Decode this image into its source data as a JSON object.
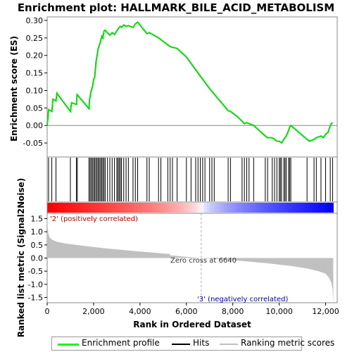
{
  "chart_data": {
    "type": "line",
    "title": "Enrichment plot: HALLMARK_BILE_ACID_METABOLISM",
    "panels": {
      "es": {
        "ylabel": "Enrichment score (ES)",
        "ylim": [
          -0.09,
          0.31
        ],
        "yticks": [
          -0.05,
          0.0,
          0.05,
          0.1,
          0.15,
          0.2,
          0.25,
          0.3
        ],
        "ytick_labels": [
          "-0.05",
          "0.00",
          "0.05",
          "0.10",
          "0.15",
          "0.20",
          "0.25",
          "0.30"
        ],
        "series": [
          {
            "name": "Enrichment profile",
            "color": "#00e000",
            "x": [
              0,
              60,
              200,
              250,
              380,
              420,
              1000,
              1050,
              1260,
              1290,
              1800,
              1830,
              1900,
              1950,
              2000,
              2050,
              2100,
              2150,
              2200,
              2250,
              2300,
              2350,
              2400,
              2450,
              2500,
              2550,
              2700,
              2800,
              2900,
              3000,
              3100,
              3150,
              3200,
              3300,
              3400,
              3500,
              3700,
              3800,
              3900,
              4300,
              4400,
              4800,
              4900,
              5200,
              5300,
              5600,
              6000,
              6500,
              7000,
              7800,
              7900,
              8200,
              8500,
              8600,
              8700,
              8900,
              9400,
              9500,
              9700,
              9800,
              9900,
              10000,
              10100,
              10200,
              10250,
              10300,
              10400,
              10450,
              10500,
              11200,
              11300,
              11500,
              11600,
              11800,
              11900,
              12000,
              12100,
              12200,
              12250,
              12300
            ],
            "y": [
              0.0,
              0.045,
              0.04,
              0.075,
              0.07,
              0.092,
              0.04,
              0.065,
              0.06,
              0.088,
              0.048,
              0.075,
              0.1,
              0.11,
              0.13,
              0.14,
              0.18,
              0.2,
              0.22,
              0.23,
              0.24,
              0.255,
              0.25,
              0.27,
              0.272,
              0.268,
              0.258,
              0.265,
              0.26,
              0.27,
              0.28,
              0.283,
              0.28,
              0.287,
              0.283,
              0.285,
              0.28,
              0.29,
              0.295,
              0.262,
              0.265,
              0.25,
              0.245,
              0.23,
              0.225,
              0.22,
              0.195,
              0.15,
              0.105,
              0.042,
              0.04,
              0.025,
              0.005,
              0.008,
              0.005,
              0.0,
              -0.03,
              -0.035,
              -0.035,
              -0.04,
              -0.045,
              -0.045,
              -0.05,
              -0.04,
              -0.035,
              -0.03,
              -0.015,
              -0.005,
              0.0,
              -0.04,
              -0.045,
              -0.04,
              -0.035,
              -0.03,
              -0.035,
              -0.025,
              -0.02,
              0.0,
              0.005,
              0.008
            ]
          }
        ]
      },
      "hits": {
        "name": "Hits",
        "positions": [
          60,
          200,
          380,
          1000,
          1260,
          1300,
          1800,
          1850,
          1900,
          1950,
          2000,
          2050,
          2100,
          2150,
          2200,
          2250,
          2300,
          2350,
          2400,
          2450,
          2500,
          2600,
          2700,
          2800,
          2900,
          3000,
          3050,
          3100,
          3150,
          3200,
          3300,
          3400,
          3500,
          3700,
          3800,
          3900,
          4300,
          4400,
          4800,
          4900,
          5200,
          5300,
          5400,
          5600,
          6000,
          6200,
          6400,
          6500,
          6600,
          6700,
          6800,
          7000,
          7100,
          7200,
          7800,
          7900,
          8400,
          8500,
          8600,
          8700,
          8900,
          9400,
          9500,
          9700,
          9800,
          9900,
          10000,
          10050,
          10100,
          10200,
          10250,
          10300,
          10400,
          10450,
          10500,
          11200,
          11500,
          11600,
          11800,
          12000,
          12200,
          12300
        ]
      },
      "heatmap": {
        "name": "Ranking metric scores",
        "label_pos": "'2' (positively correlated)",
        "label_neg": "'3' (negatively correlated)",
        "pos_color": "#ff0000",
        "neg_color": "#0000ff"
      },
      "metric": {
        "ylabel": "Ranked list metric (Signal2Noise)",
        "xlabel": "Rank in Ordered Dataset",
        "xlim": [
          0,
          12500
        ],
        "xticks": [
          0,
          2000,
          4000,
          6000,
          8000,
          10000,
          12000
        ],
        "xtick_labels": [
          "0",
          "2,000",
          "4,000",
          "6,000",
          "8,000",
          "10,000",
          "12,000"
        ],
        "ylim": [
          -1.7,
          1.7
        ],
        "yticks": [
          -1.5,
          -1.0,
          -0.5,
          0.0,
          0.5,
          1.0,
          1.5
        ],
        "ytick_labels": [
          "-1.5",
          "-1.0",
          "-0.5",
          "0.0",
          "0.5",
          "1.0",
          "1.5"
        ],
        "zero_cross_label": "Zero cross at 6640",
        "zero_cross_rank": 6640,
        "fill_color": "#c0c0c0",
        "x": [
          0,
          20,
          50,
          100,
          200,
          400,
          800,
          1500,
          2500,
          4000,
          5300,
          5300,
          6640,
          8000,
          9500,
          10500,
          11200,
          11700,
          12000,
          12150,
          12250,
          12300,
          12330
        ],
        "y": [
          1.7,
          1.2,
          0.95,
          0.8,
          0.7,
          0.62,
          0.55,
          0.47,
          0.37,
          0.25,
          0.15,
          0.1,
          0.0,
          -0.08,
          -0.2,
          -0.3,
          -0.4,
          -0.5,
          -0.6,
          -0.75,
          -0.95,
          -1.2,
          -1.7
        ]
      }
    },
    "legend": {
      "entries": [
        {
          "label": "Enrichment profile",
          "color": "#00ff00"
        },
        {
          "label": "Hits",
          "color": "#000000"
        },
        {
          "label": "Ranking metric scores",
          "color": "#c0c0c0"
        }
      ]
    }
  }
}
